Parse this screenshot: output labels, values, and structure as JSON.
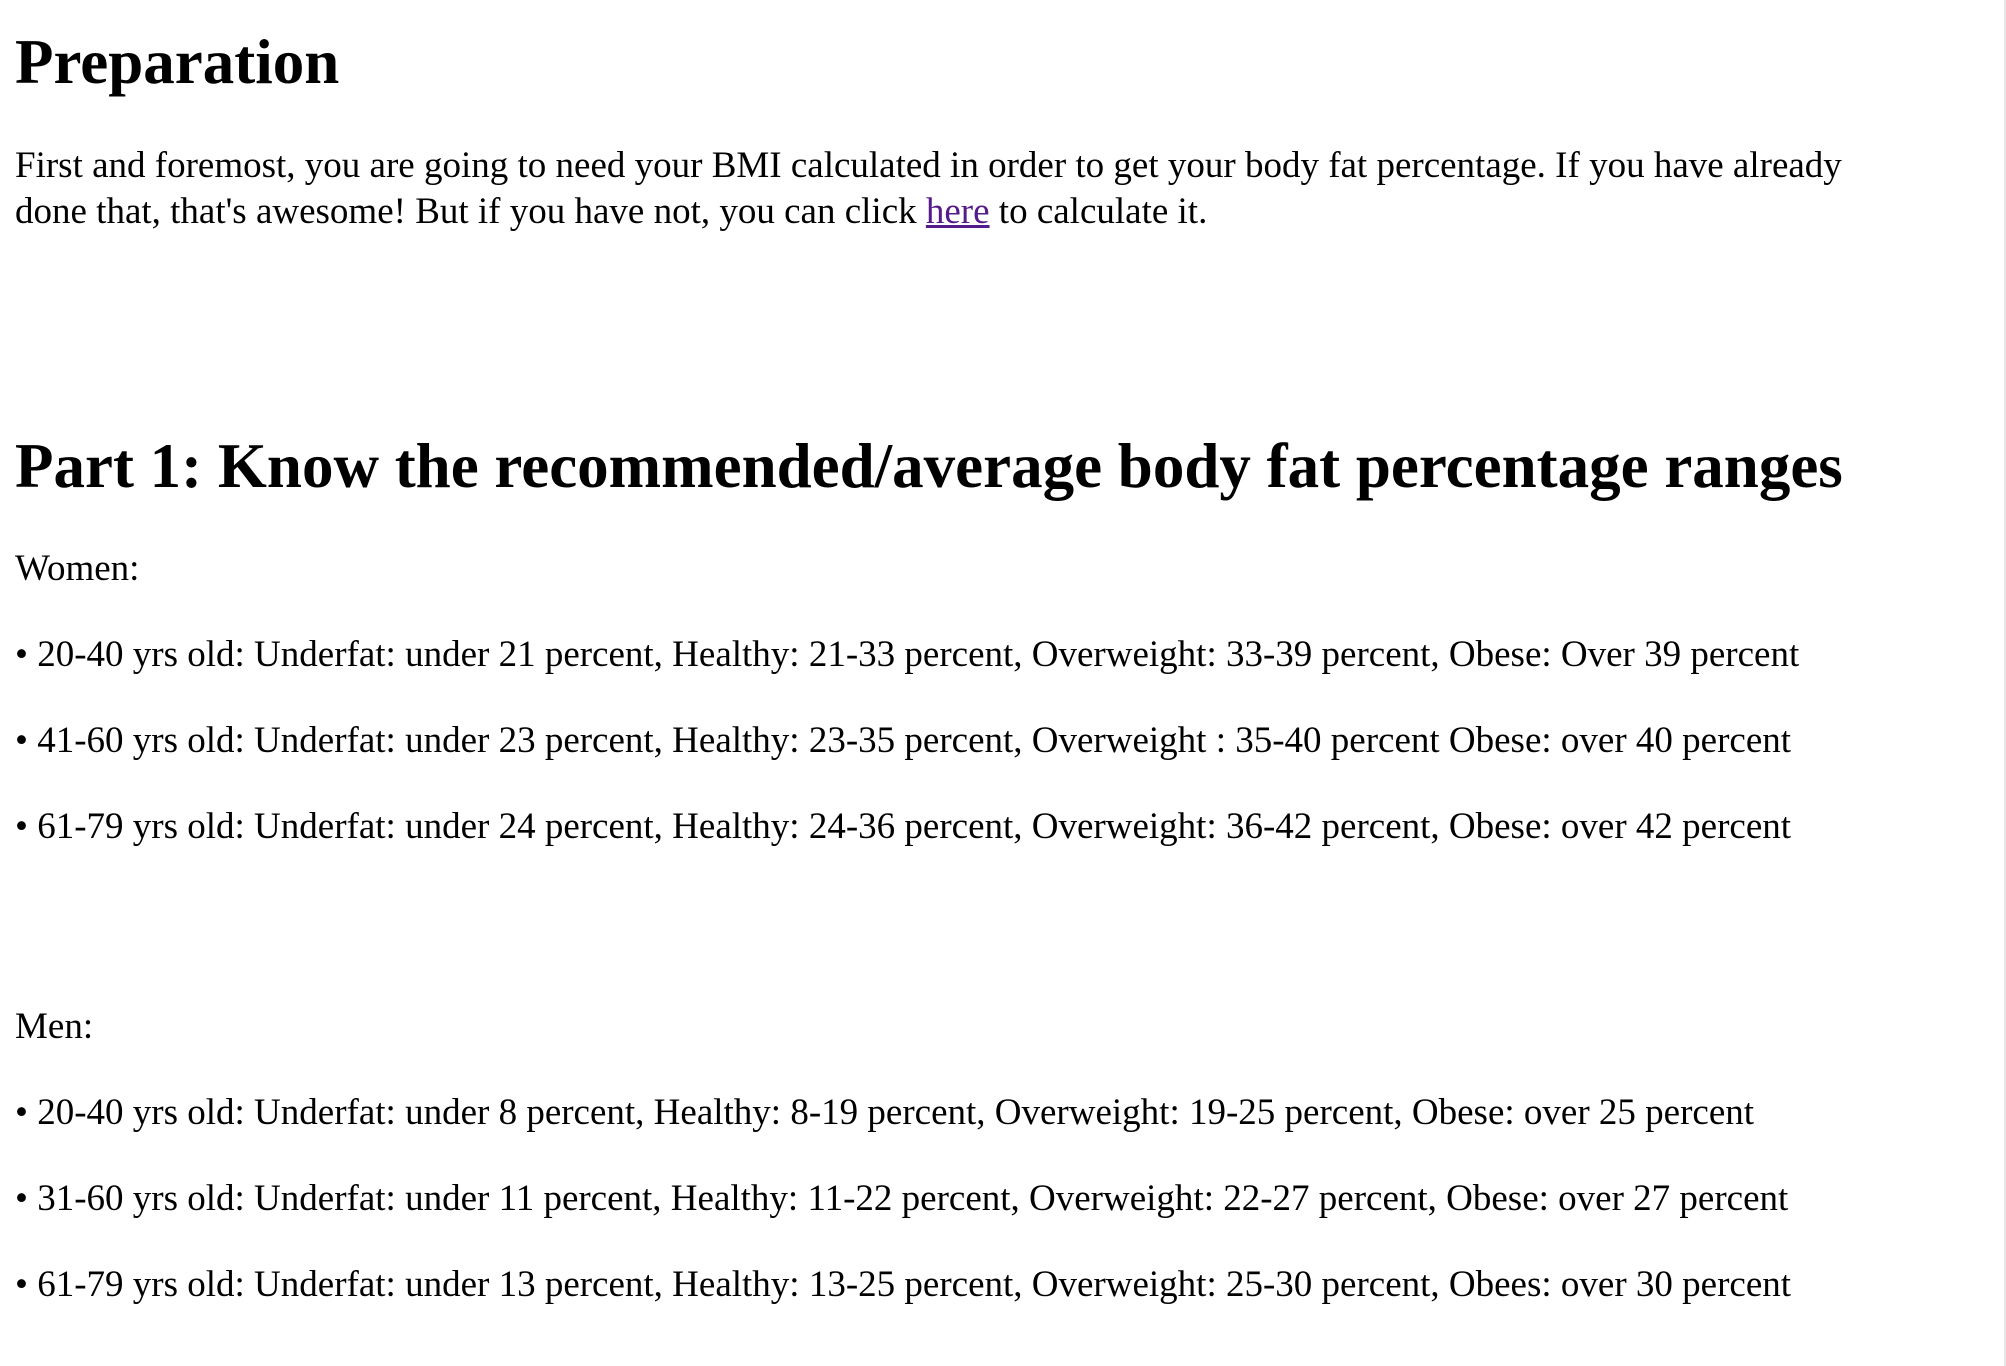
{
  "preparation": {
    "title": "Preparation",
    "intro_before_link": "First and foremost, you are going to need your BMI calculated in order to get your body fat percentage. If you have already done that, that's awesome! But if you have not, you can click ",
    "link_text": "here",
    "intro_after_link": " to calculate it."
  },
  "part1": {
    "title": "Part 1: Know the recommended/average body fat percentage ranges",
    "women_label": "Women:",
    "women_items": [
      "• 20-40 yrs old: Underfat: under 21 percent, Healthy: 21-33 percent, Overweight: 33-39 percent, Obese: Over 39 percent",
      "• 41-60 yrs old: Underfat: under 23 percent, Healthy: 23-35 percent, Overweight : 35-40 percent Obese: over 40 percent",
      "• 61-79 yrs old: Underfat: under 24 percent, Healthy: 24-36 percent, Overweight: 36-42 percent, Obese: over 42 percent"
    ],
    "men_label": "Men:",
    "men_items": [
      "• 20-40 yrs old: Underfat: under 8 percent, Healthy: 8-19 percent, Overweight: 19-25 percent, Obese: over 25 percent",
      "• 31-60 yrs old: Underfat: under 11 percent, Healthy: 11-22 percent, Overweight: 22-27 percent, Obese: over 27 percent",
      "• 61-79 yrs old: Underfat: under 13 percent, Healthy: 13-25 percent, Overweight: 25-30 percent, Obees: over 30 percent"
    ]
  },
  "colors": {
    "text": "#000000",
    "visited_link": "#551a8b",
    "background": "#ffffff"
  }
}
